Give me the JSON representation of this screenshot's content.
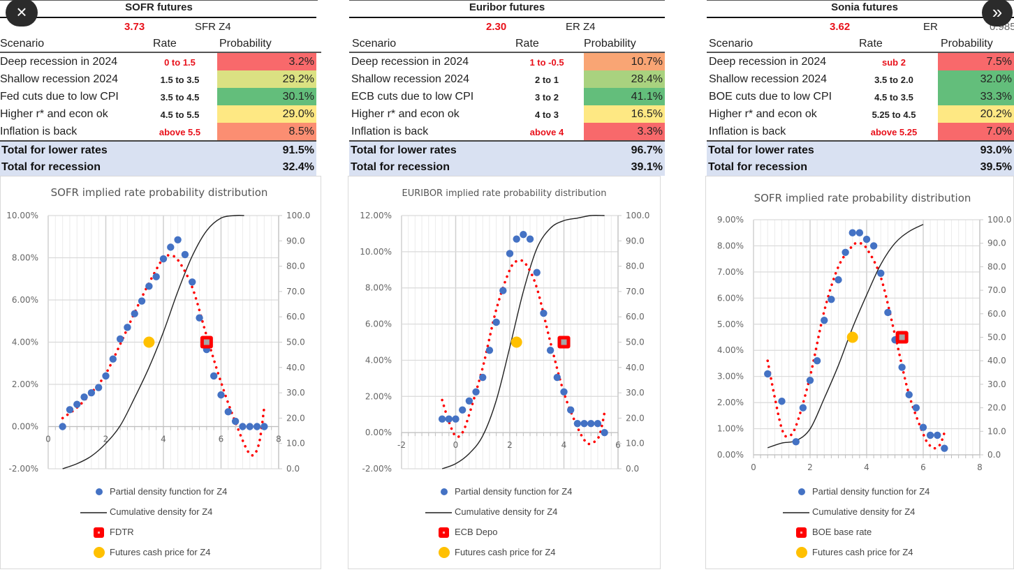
{
  "nav": {
    "close_icon": "×",
    "next_icon": "»"
  },
  "colors": {
    "red": "#f8696b",
    "orange": "#f9a574",
    "yellow": "#fee883",
    "yellowgreen": "#dbe182",
    "lightgreen": "#a9d27f",
    "green": "#63be7b",
    "salmon": "#fb8e72",
    "totals_bg": "#d9e1f2",
    "pdf": "#4472c4",
    "fit": "#ff0000",
    "cdf": "#222222",
    "policy": "#ff0000",
    "cash": "#ffc000"
  },
  "tables": [
    {
      "title": "SOFR futures",
      "price": "3.73",
      "ticker": "SFR Z4",
      "ticker_extra": "",
      "headers": {
        "scenario": "Scenario",
        "rate": "Rate",
        "probability": "Probability"
      },
      "rows": [
        {
          "scenario": "Deep recession in 2024",
          "rate": "0 to 1.5",
          "rate_red": true,
          "probability": "3.2%",
          "color": "#f8696b"
        },
        {
          "scenario": "Shallow recession 2024",
          "rate": "1.5 to 3.5",
          "rate_red": false,
          "probability": "29.2%",
          "color": "#dbe182"
        },
        {
          "scenario": "Fed cuts due to low CPI",
          "rate": "3.5 to 4.5",
          "rate_red": false,
          "probability": "30.1%",
          "color": "#63be7b"
        },
        {
          "scenario": "Higher r* and econ ok",
          "rate": "4.5 to 5.5",
          "rate_red": false,
          "probability": "29.0%",
          "color": "#fee883"
        },
        {
          "scenario": "Inflation is back",
          "rate": "above 5.5",
          "rate_red": true,
          "probability": "8.5%",
          "color": "#fb8e72"
        }
      ],
      "totals": [
        {
          "label": "Total for lower rates",
          "value": "91.5%"
        },
        {
          "label": "Total for recession",
          "value": "32.4%"
        }
      ]
    },
    {
      "title": "Euribor futures",
      "price": "2.30",
      "ticker": "ER Z4",
      "ticker_extra": "",
      "headers": {
        "scenario": "Scenario",
        "rate": "Rate",
        "probability": "Probability"
      },
      "rows": [
        {
          "scenario": "Deep recession in 2024",
          "rate": "1 to -0.5",
          "rate_red": true,
          "probability": "10.7%",
          "color": "#f9a574"
        },
        {
          "scenario": "Shallow recession 2024",
          "rate": "2 to 1",
          "rate_red": false,
          "probability": "28.4%",
          "color": "#a9d27f"
        },
        {
          "scenario": "ECB cuts due to low CPI",
          "rate": "3 to 2",
          "rate_red": false,
          "probability": "41.1%",
          "color": "#63be7b"
        },
        {
          "scenario": "Higher r* and econ ok",
          "rate": "4 to 3",
          "rate_red": false,
          "probability": "16.5%",
          "color": "#fee883"
        },
        {
          "scenario": "Inflation is back",
          "rate": "above 4",
          "rate_red": true,
          "probability": "3.3%",
          "color": "#f8696b"
        }
      ],
      "totals": [
        {
          "label": "Total for lower rates",
          "value": "96.7%"
        },
        {
          "label": "Total for recession",
          "value": "39.1%"
        }
      ]
    },
    {
      "title": "Sonia futures",
      "price": "3.62",
      "ticker": "ER",
      "ticker_extra": "0.985",
      "headers": {
        "scenario": "Scenario",
        "rate": "Rate",
        "probability": "Probability"
      },
      "rows": [
        {
          "scenario": "Deep recession in 2024",
          "rate": "sub 2",
          "rate_red": true,
          "probability": "7.5%",
          "color": "#f8696b"
        },
        {
          "scenario": "Shallow recession 2024",
          "rate": "3.5 to 2.0",
          "rate_red": false,
          "probability": "32.0%",
          "color": "#63be7b"
        },
        {
          "scenario": "BOE cuts due to low CPI",
          "rate": "4.5 to 3.5",
          "rate_red": false,
          "probability": "33.3%",
          "color": "#63be7b"
        },
        {
          "scenario": "Higher r* and econ ok",
          "rate": "5.25 to 4.5",
          "rate_red": false,
          "probability": "20.2%",
          "color": "#fee883"
        },
        {
          "scenario": "Inflation is back",
          "rate": "above 5.25",
          "rate_red": true,
          "probability": "7.0%",
          "color": "#f8696b"
        }
      ],
      "totals": [
        {
          "label": "Total for lower rates",
          "value": "93.0%"
        },
        {
          "label": "Total for recession",
          "value": "39.5%"
        }
      ]
    }
  ],
  "chart_data": [
    {
      "type": "scatter",
      "title": "SOFR implied rate probability distribution",
      "xlim": [
        0,
        8
      ],
      "xticks": [
        0,
        2,
        4,
        6,
        8
      ],
      "ylim": [
        -2,
        10
      ],
      "yticks": [
        -2,
        0,
        2,
        4,
        6,
        8,
        10
      ],
      "ytick_labels": [
        "-2.00%",
        "0.00%",
        "2.00%",
        "4.00%",
        "6.00%",
        "8.00%",
        "10.00%"
      ],
      "y2lim": [
        0,
        100
      ],
      "y2ticks": [
        0,
        10,
        20,
        30,
        40,
        50,
        60,
        70,
        80,
        90,
        100
      ],
      "y2tick_labels": [
        "0.0",
        "10.0",
        "20.0",
        "30.0",
        "40.0",
        "50.0",
        "60.0",
        "70.0",
        "80.0",
        "90.0",
        "100.0"
      ],
      "grid": true,
      "legend_position": "bottom",
      "series": [
        {
          "name": "Partial density function for Z4",
          "kind": "points",
          "axis": "left",
          "x": [
            0.5,
            0.75,
            1.0,
            1.25,
            1.5,
            1.75,
            2.0,
            2.25,
            2.5,
            2.75,
            3.0,
            3.25,
            3.5,
            3.75,
            4.0,
            4.25,
            4.5,
            4.75,
            5.0,
            5.25,
            5.5,
            5.75,
            6.0,
            6.25,
            6.5,
            6.75,
            7.0,
            7.25,
            7.5
          ],
          "y": [
            0.0,
            0.8,
            1.05,
            1.4,
            1.6,
            1.85,
            2.4,
            3.2,
            4.15,
            4.7,
            5.35,
            5.95,
            6.65,
            7.1,
            7.95,
            8.5,
            8.85,
            8.15,
            6.85,
            5.15,
            3.65,
            2.4,
            1.5,
            0.7,
            0.25,
            0,
            0,
            0,
            0
          ]
        },
        {
          "name": "Polynomial fit",
          "kind": "dotted",
          "axis": "left",
          "x": [
            0.5,
            1.0,
            1.5,
            2.0,
            2.5,
            3.0,
            3.5,
            4.0,
            4.2,
            4.5,
            5.0,
            5.5,
            6.0,
            6.5,
            7.0,
            7.3,
            7.5
          ],
          "y": [
            0.4,
            0.9,
            1.6,
            2.5,
            3.9,
            5.4,
            6.8,
            8.0,
            8.1,
            7.9,
            6.6,
            4.3,
            2.1,
            0.2,
            -1.3,
            -0.9,
            0.9
          ]
        },
        {
          "name": "Cumulative density for Z4",
          "kind": "line",
          "axis": "right",
          "x": [
            0.5,
            1.0,
            1.5,
            2.0,
            2.5,
            3.0,
            3.5,
            4.0,
            4.5,
            5.0,
            5.5,
            6.0,
            6.5,
            6.8
          ],
          "y": [
            0,
            2,
            5,
            10,
            17,
            28,
            40,
            54,
            70,
            84,
            94,
            99,
            100,
            100
          ]
        },
        {
          "name": "FDTR",
          "kind": "square",
          "axis": "left",
          "x": [
            5.5
          ],
          "y": [
            4.0
          ]
        },
        {
          "name": "Futures cash price for Z4",
          "kind": "circle",
          "axis": "left",
          "x": [
            3.5
          ],
          "y": [
            4.0
          ]
        }
      ]
    },
    {
      "type": "scatter",
      "title": "EURIBOR implied rate probability distribution",
      "xlim": [
        -2,
        6
      ],
      "xticks": [
        -2,
        0,
        2,
        4,
        6
      ],
      "ylim": [
        -2,
        12
      ],
      "yticks": [
        -2,
        0,
        2,
        4,
        6,
        8,
        10,
        12
      ],
      "ytick_labels": [
        "-2.00%",
        "0.00%",
        "2.00%",
        "4.00%",
        "6.00%",
        "8.00%",
        "10.00%",
        "12.00%"
      ],
      "y2lim": [
        0,
        100
      ],
      "y2ticks": [
        0,
        10,
        20,
        30,
        40,
        50,
        60,
        70,
        80,
        90,
        100
      ],
      "y2tick_labels": [
        "0.0",
        "10.0",
        "20.0",
        "30.0",
        "40.0",
        "50.0",
        "60.0",
        "70.0",
        "80.0",
        "90.0",
        "100.0"
      ],
      "grid": true,
      "legend_position": "bottom",
      "series": [
        {
          "name": "Partial density function for Z4",
          "kind": "points",
          "axis": "left",
          "x": [
            -0.5,
            -0.25,
            0.0,
            0.25,
            0.5,
            0.75,
            1.0,
            1.25,
            1.5,
            1.75,
            2.0,
            2.25,
            2.5,
            2.75,
            3.0,
            3.25,
            3.5,
            3.75,
            4.0,
            4.25,
            4.5,
            4.75,
            5.0,
            5.25,
            5.5
          ],
          "y": [
            0.75,
            0.75,
            0.75,
            1.25,
            1.75,
            2.25,
            3.05,
            4.55,
            6.1,
            7.85,
            9.9,
            10.7,
            10.95,
            10.7,
            8.85,
            6.6,
            4.55,
            3.05,
            2.25,
            1.25,
            0.5,
            0.5,
            0.5,
            0.5,
            0.0
          ]
        },
        {
          "name": "Polynomial fit",
          "kind": "dotted",
          "axis": "left",
          "x": [
            -0.5,
            -0.25,
            0.0,
            0.25,
            0.5,
            1.0,
            1.5,
            2.0,
            2.3,
            2.6,
            3.0,
            3.5,
            4.0,
            4.5,
            4.8,
            5.0,
            5.3,
            5.5
          ],
          "y": [
            1.8,
            0.6,
            -0.2,
            0.0,
            1.0,
            3.6,
            6.8,
            9.0,
            9.5,
            9.3,
            8.0,
            5.0,
            2.2,
            0.3,
            -0.5,
            -0.6,
            -0.2,
            1.1
          ]
        },
        {
          "name": "Cumulative density for Z4",
          "kind": "line",
          "axis": "right",
          "x": [
            -0.5,
            0.0,
            0.5,
            1.0,
            1.5,
            2.0,
            2.5,
            3.0,
            3.5,
            4.0,
            4.5,
            5.0,
            5.5
          ],
          "y": [
            0,
            2,
            6,
            13,
            27,
            48,
            70,
            87,
            95,
            98,
            99,
            100,
            100
          ]
        },
        {
          "name": "ECB Depo",
          "kind": "square",
          "axis": "left",
          "x": [
            4.0
          ],
          "y": [
            5.0
          ]
        },
        {
          "name": "Futures cash price for Z4",
          "kind": "circle",
          "axis": "left",
          "x": [
            2.25
          ],
          "y": [
            5.0
          ]
        }
      ]
    },
    {
      "type": "scatter",
      "title": "SOFR implied rate probability distribution",
      "xlim": [
        0,
        8
      ],
      "xticks": [
        0,
        2,
        4,
        6,
        8
      ],
      "ylim": [
        0,
        9
      ],
      "yticks": [
        0,
        1,
        2,
        3,
        4,
        5,
        6,
        7,
        8,
        9
      ],
      "ytick_labels": [
        "0.00%",
        "1.00%",
        "2.00%",
        "3.00%",
        "4.00%",
        "5.00%",
        "6.00%",
        "7.00%",
        "8.00%",
        "9.00%"
      ],
      "y2lim": [
        0,
        100
      ],
      "y2ticks": [
        0,
        10,
        20,
        30,
        40,
        50,
        60,
        70,
        80,
        90,
        100
      ],
      "y2tick_labels": [
        "0.0",
        "10.0",
        "20.0",
        "30.0",
        "40.0",
        "50.0",
        "60.0",
        "70.0",
        "80.0",
        "90.0",
        "100.0"
      ],
      "grid": true,
      "legend_position": "bottom",
      "series": [
        {
          "name": "Partial density function for Z4",
          "kind": "points",
          "axis": "left",
          "x": [
            0.5,
            1.0,
            1.5,
            1.75,
            2.0,
            2.25,
            2.5,
            2.75,
            3.0,
            3.25,
            3.5,
            3.75,
            4.0,
            4.25,
            4.5,
            4.75,
            5.0,
            5.25,
            5.5,
            5.75,
            6.0,
            6.25,
            6.5,
            6.75
          ],
          "y": [
            3.1,
            2.05,
            0.5,
            1.8,
            2.85,
            3.6,
            5.15,
            5.95,
            6.7,
            7.75,
            8.5,
            8.5,
            8.25,
            8.0,
            6.95,
            5.45,
            4.4,
            3.35,
            2.3,
            1.8,
            1.05,
            0.75,
            0.75,
            0.25
          ]
        },
        {
          "name": "Polynomial fit",
          "kind": "dotted",
          "axis": "left",
          "x": [
            0.5,
            0.75,
            1.0,
            1.2,
            1.5,
            2.0,
            2.5,
            3.0,
            3.5,
            3.75,
            4.0,
            4.5,
            5.0,
            5.5,
            6.0,
            6.2,
            6.4,
            6.6,
            6.75
          ],
          "y": [
            3.6,
            2.2,
            1.0,
            0.7,
            1.1,
            3.0,
            5.5,
            7.2,
            8.0,
            8.1,
            7.9,
            6.8,
            4.6,
            2.3,
            0.8,
            0.4,
            0.25,
            0.4,
            0.85
          ]
        },
        {
          "name": "Cumulative density for Z4",
          "kind": "line",
          "axis": "right",
          "x": [
            0.5,
            1.0,
            1.5,
            2.0,
            2.5,
            3.0,
            3.5,
            4.0,
            4.5,
            5.0,
            5.5,
            6.0
          ],
          "y": [
            3,
            5,
            6,
            11,
            24,
            38,
            54,
            68,
            81,
            90,
            95,
            98
          ]
        },
        {
          "name": "BOE  base rate",
          "kind": "square",
          "axis": "left",
          "x": [
            5.25
          ],
          "y": [
            4.5
          ]
        },
        {
          "name": "Futures cash price for Z4",
          "kind": "circle",
          "axis": "left",
          "x": [
            3.5
          ],
          "y": [
            4.5
          ]
        }
      ]
    }
  ],
  "legends": [
    [
      "Partial density function for Z4",
      "Cumulative density for Z4",
      "FDTR",
      "Futures cash price for Z4"
    ],
    [
      "Partial density function for Z4",
      "Cumulative density for Z4",
      "ECB Depo",
      "Futures cash price for Z4"
    ],
    [
      "Partial density function for Z4",
      "Cumulative density for Z4",
      "BOE  base rate",
      "Futures cash price for Z4"
    ]
  ]
}
